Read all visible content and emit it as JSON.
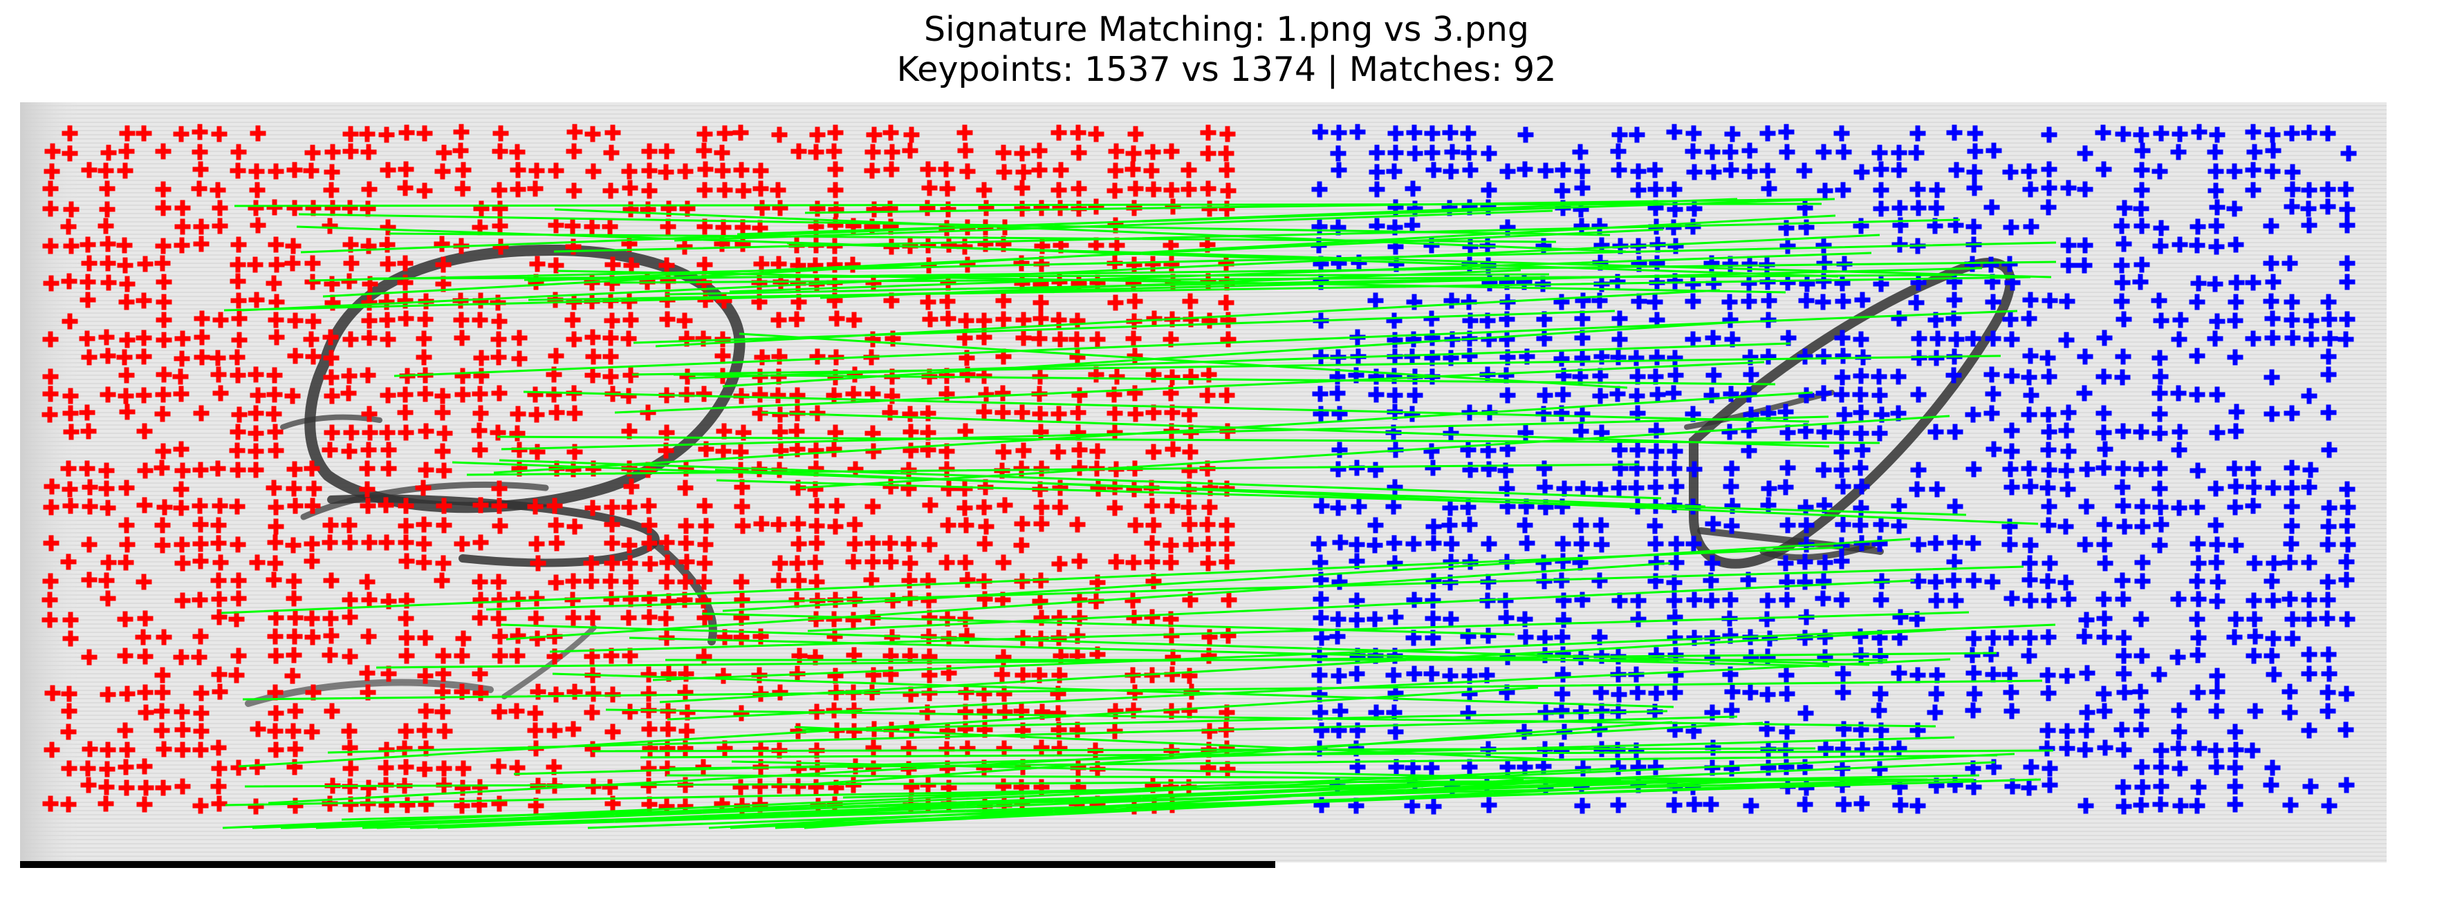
{
  "title": {
    "line1": "Signature Matching: 1.png vs 3.png",
    "line2": "Keypoints: 1537 vs 1374 | Matches: 92"
  },
  "images": {
    "left": {
      "name": "1.png",
      "keypoint_count": 1537,
      "keypoint_color": "#ff0000"
    },
    "right": {
      "name": "3.png",
      "keypoint_count": 1374,
      "keypoint_color": "#0000ff"
    }
  },
  "matches": {
    "count": 92,
    "line_color": "#00ff00"
  },
  "colors": {
    "background": "#ffffff",
    "paper": "#e6e6e6",
    "ink": "#2a2a2a"
  }
}
